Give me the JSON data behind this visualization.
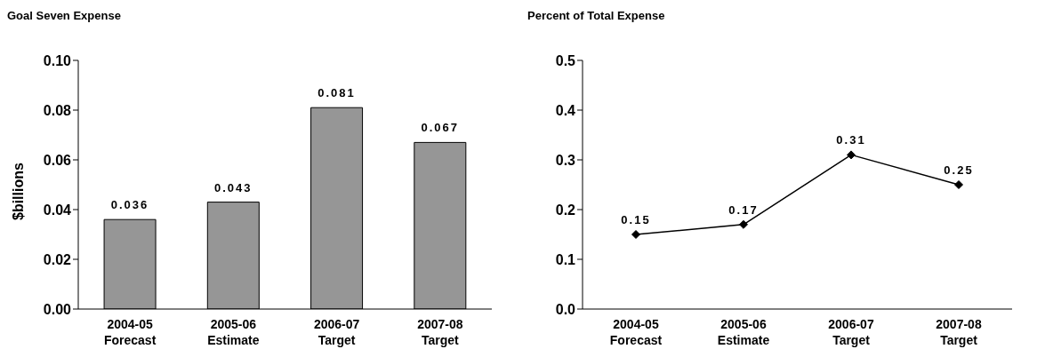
{
  "chart_data": [
    {
      "type": "bar",
      "title": "Goal Seven Expense",
      "ylabel": "$billions",
      "categories": [
        "2004-05\nForecast",
        "2005-06\nEstimate",
        "2006-07\nTarget",
        "2007-08\nTarget"
      ],
      "values": [
        0.036,
        0.043,
        0.081,
        0.067
      ],
      "color": "#969696",
      "ylim": [
        0,
        0.1
      ],
      "yticks": [
        {
          "value": 0,
          "label": "0.00"
        },
        {
          "value": 0.02,
          "label": "0.02"
        },
        {
          "value": 0.04,
          "label": "0.04"
        },
        {
          "value": 0.06,
          "label": "0.06"
        },
        {
          "value": 0.08,
          "label": "0.08"
        },
        {
          "value": 0.1,
          "label": "0.10"
        }
      ],
      "data_labels": true,
      "grid": false,
      "legend": false
    },
    {
      "type": "line",
      "title": "Percent of Total Expense",
      "categories": [
        "2004-05\nForecast",
        "2005-06\nEstimate",
        "2006-07\nTarget",
        "2007-08\nTarget"
      ],
      "values": [
        0.15,
        0.17,
        0.31,
        0.25
      ],
      "color": "#000000",
      "ylim": [
        0,
        0.5
      ],
      "yticks": [
        {
          "value": 0,
          "label": "0.0"
        },
        0.1,
        0.2,
        0.3,
        0.4,
        0.5
      ],
      "data_labels": true,
      "marker": "diamond",
      "grid": false,
      "legend": false
    }
  ]
}
